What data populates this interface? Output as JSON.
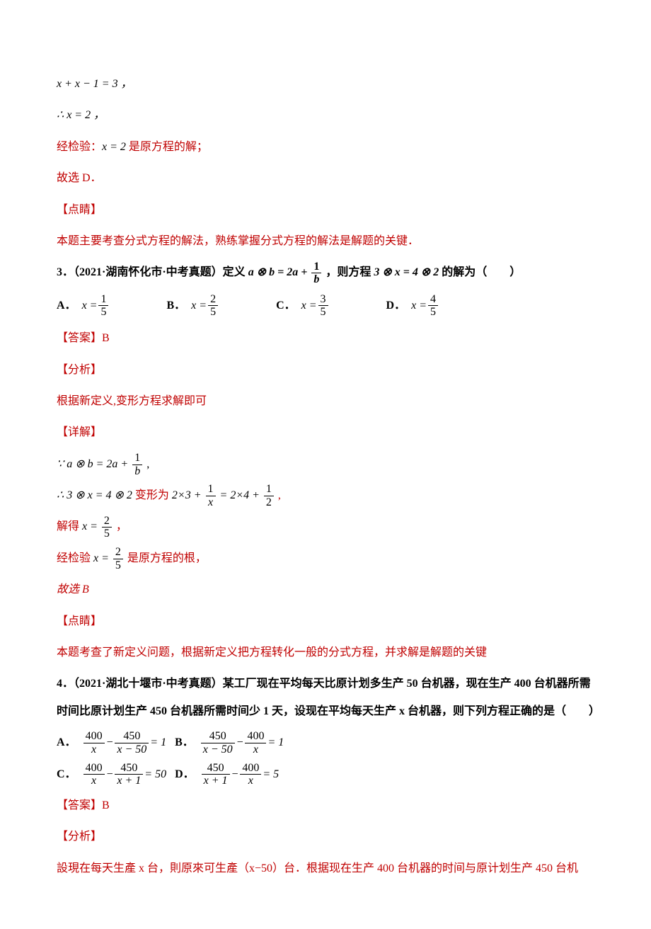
{
  "line1": "x + x − 1 = 3 ，",
  "line2_pre": "∴ ",
  "line2_eq": "x = 2 ，",
  "line3_a": "经检验：",
  "line3_b": "x = 2",
  "line3_c": " 是原方程的解；",
  "line4": "故选 D．",
  "dianjing": "【点睛】",
  "line5": "本题主要考查分式方程的解法，熟练掌握分式方程的解法是解题的关键．",
  "q3": {
    "prefix": "3．（2021·湖南怀化市·中考真题）定义 ",
    "formula_a": "a ⊗ b = 2a + ",
    "frac_num": "1",
    "frac_den": "b",
    "mid": " ，则方程 ",
    "formula_b": "3 ⊗ x = 4 ⊗ 2",
    "suffix": " 的解为（　　）",
    "choices": {
      "A_label": "A．",
      "A_pre": "x = ",
      "A_num": "1",
      "A_den": "5",
      "B_label": "B．",
      "B_pre": "x = ",
      "B_num": "2",
      "B_den": "5",
      "C_label": "C．",
      "C_pre": "x = ",
      "C_num": "3",
      "C_den": "5",
      "D_label": "D．",
      "D_pre": "x = ",
      "D_num": "4",
      "D_den": "5"
    },
    "answer_label": "【答案】",
    "answer_val": "B",
    "fenxi": "【分析】",
    "fenxi_text": "根据新定义,变形方程求解即可",
    "xiangjie": "【详解】",
    "step1_a": "∵ ",
    "step1_b": "a ⊗ b = 2a + ",
    "step1_num": "1",
    "step1_den": "b",
    "step1_c": " ,",
    "step2_a": "∴ ",
    "step2_b": "3 ⊗ x = 4 ⊗ 2",
    "step2_c": " 变形为 ",
    "step2_d": "2×3 + ",
    "step2_e_num": "1",
    "step2_e_den": "x",
    "step2_f": " = 2×4 + ",
    "step2_g_num": "1",
    "step2_g_den": "2",
    "step2_h": " ,",
    "step3_a": "解得 ",
    "step3_b": "x = ",
    "step3_num": "2",
    "step3_den": "5",
    "step3_c": "  ，",
    "step4_a": "经检验 ",
    "step4_b": "x = ",
    "step4_num": "2",
    "step4_den": "5",
    "step4_c": "  是原方程的根，",
    "step5": "故选 B",
    "dianjing2": "【点睛】",
    "dianjing2_text": "本题考查了新定义问题，根据新定义把方程转化一般的分式方程，并求解是解题的关键"
  },
  "q4": {
    "prefix": "4．（2021·湖北十堰市·中考真题）某工厂现在平均每天比原计划多生产 50 台机器，现在生产 400 台机器所需时间比原计划生产 450 台机器所需时间少 1 天，设现在平均每天生产 x 台机器，则下列方程正确的是（　　）",
    "A_label": "A．",
    "B_label": "B．",
    "C_label": "C．",
    "D_label": "D．",
    "A_n1": "400",
    "A_d1": "x",
    "A_n2": "450",
    "A_d2": "x − 50",
    "A_rhs": " = 1",
    "B_n1": "450",
    "B_d1": "x − 50",
    "B_n2": "400",
    "B_d2": "x",
    "B_rhs": " = 1",
    "C_n1": "400",
    "C_d1": "x",
    "C_n2": "450",
    "C_d2": "x + 1",
    "C_rhs": " = 50",
    "D_n1": "450",
    "D_d1": "x + 1",
    "D_n2": "400",
    "D_d2": "x",
    "D_rhs": " = 5",
    "minus": " − ",
    "answer_label": "【答案】",
    "answer_val": "B",
    "fenxi": "【分析】",
    "fenxi_text": "設現在每天生產 x 台，則原來可生產（x−50）台．根据现在生产 400 台机器的时间与原计划生产 450 台机"
  }
}
